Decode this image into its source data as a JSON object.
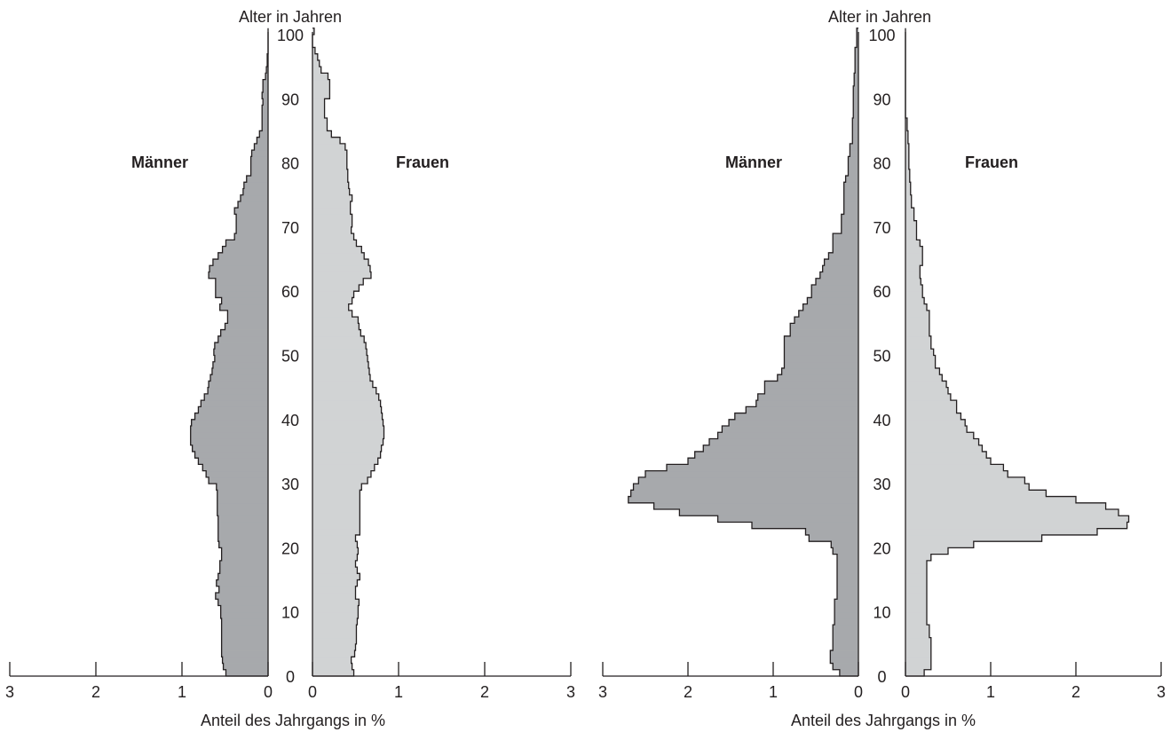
{
  "colors": {
    "men": "#a7a9ac",
    "women": "#d1d3d4",
    "line": "#231f20"
  },
  "chart_data": [
    {
      "type": "bar",
      "orientation": "horizontal-pyramid",
      "ylabel": "Alter in Jahren",
      "xlabel": "Anteil des Jahrgangs in %",
      "ylim": [
        0,
        100
      ],
      "xlim": [
        0,
        3
      ],
      "y_ticks": [
        "0",
        "10",
        "20",
        "30",
        "40",
        "50",
        "60",
        "70",
        "80",
        "90",
        "100"
      ],
      "x_ticks": [
        "0",
        "1",
        "2",
        "3"
      ],
      "male_label": "Männer",
      "female_label": "Frauen",
      "age": [
        0,
        1,
        2,
        3,
        4,
        5,
        6,
        7,
        8,
        9,
        10,
        11,
        12,
        13,
        14,
        15,
        16,
        17,
        18,
        19,
        20,
        21,
        22,
        23,
        24,
        25,
        26,
        27,
        28,
        29,
        30,
        31,
        32,
        33,
        34,
        35,
        36,
        37,
        38,
        39,
        40,
        41,
        42,
        43,
        44,
        45,
        46,
        47,
        48,
        49,
        50,
        51,
        52,
        53,
        54,
        55,
        56,
        57,
        58,
        59,
        60,
        61,
        62,
        63,
        64,
        65,
        66,
        67,
        68,
        69,
        70,
        71,
        72,
        73,
        74,
        75,
        76,
        77,
        78,
        79,
        80,
        81,
        82,
        83,
        84,
        85,
        86,
        87,
        88,
        89,
        90,
        91,
        92,
        93,
        94,
        95,
        96,
        97,
        98,
        99,
        100
      ],
      "series": [
        {
          "name": "Männer",
          "values": [
            0.49,
            0.52,
            0.53,
            0.54,
            0.54,
            0.54,
            0.54,
            0.54,
            0.54,
            0.55,
            0.55,
            0.58,
            0.61,
            0.57,
            0.6,
            0.58,
            0.56,
            0.56,
            0.54,
            0.54,
            0.57,
            0.58,
            0.58,
            0.58,
            0.58,
            0.59,
            0.59,
            0.59,
            0.59,
            0.6,
            0.69,
            0.72,
            0.76,
            0.81,
            0.85,
            0.88,
            0.9,
            0.9,
            0.9,
            0.89,
            0.85,
            0.81,
            0.78,
            0.74,
            0.7,
            0.69,
            0.67,
            0.65,
            0.64,
            0.62,
            0.63,
            0.62,
            0.58,
            0.55,
            0.5,
            0.47,
            0.47,
            0.56,
            0.54,
            0.61,
            0.61,
            0.61,
            0.69,
            0.68,
            0.64,
            0.58,
            0.53,
            0.49,
            0.39,
            0.37,
            0.37,
            0.37,
            0.39,
            0.35,
            0.32,
            0.29,
            0.28,
            0.25,
            0.2,
            0.2,
            0.2,
            0.19,
            0.16,
            0.13,
            0.1,
            0.07,
            0.07,
            0.07,
            0.07,
            0.06,
            0.07,
            0.06,
            0.06,
            0.03,
            0.02,
            0.01,
            0.01,
            0.0,
            0.0,
            0.0,
            0.0
          ]
        },
        {
          "name": "Frauen",
          "values": [
            0.48,
            0.46,
            0.45,
            0.49,
            0.5,
            0.51,
            0.51,
            0.51,
            0.52,
            0.53,
            0.53,
            0.54,
            0.5,
            0.5,
            0.52,
            0.55,
            0.52,
            0.5,
            0.52,
            0.53,
            0.52,
            0.5,
            0.55,
            0.55,
            0.55,
            0.55,
            0.55,
            0.55,
            0.55,
            0.57,
            0.64,
            0.68,
            0.72,
            0.76,
            0.79,
            0.8,
            0.82,
            0.83,
            0.83,
            0.82,
            0.81,
            0.8,
            0.79,
            0.77,
            0.74,
            0.7,
            0.67,
            0.66,
            0.65,
            0.64,
            0.63,
            0.62,
            0.6,
            0.56,
            0.54,
            0.53,
            0.46,
            0.42,
            0.46,
            0.48,
            0.54,
            0.59,
            0.68,
            0.67,
            0.65,
            0.6,
            0.57,
            0.51,
            0.48,
            0.45,
            0.46,
            0.46,
            0.44,
            0.44,
            0.46,
            0.43,
            0.42,
            0.41,
            0.41,
            0.4,
            0.4,
            0.4,
            0.38,
            0.32,
            0.22,
            0.17,
            0.17,
            0.14,
            0.14,
            0.14,
            0.2,
            0.2,
            0.2,
            0.18,
            0.1,
            0.08,
            0.06,
            0.03,
            0.0,
            0.0,
            0.02
          ]
        }
      ]
    },
    {
      "type": "bar",
      "orientation": "horizontal-pyramid",
      "ylabel": "Alter in Jahren",
      "xlabel": "Anteil des Jahrgangs in %",
      "ylim": [
        0,
        100
      ],
      "xlim": [
        0,
        3
      ],
      "y_ticks": [
        "0",
        "10",
        "20",
        "30",
        "40",
        "50",
        "60",
        "70",
        "80",
        "90",
        "100"
      ],
      "x_ticks": [
        "0",
        "1",
        "2",
        "3"
      ],
      "male_label": "Männer",
      "female_label": "Frauen",
      "age": [
        0,
        1,
        2,
        3,
        4,
        5,
        6,
        7,
        8,
        9,
        10,
        11,
        12,
        13,
        14,
        15,
        16,
        17,
        18,
        19,
        20,
        21,
        22,
        23,
        24,
        25,
        26,
        27,
        28,
        29,
        30,
        31,
        32,
        33,
        34,
        35,
        36,
        37,
        38,
        39,
        40,
        41,
        42,
        43,
        44,
        45,
        46,
        47,
        48,
        49,
        50,
        51,
        52,
        53,
        54,
        55,
        56,
        57,
        58,
        59,
        60,
        61,
        62,
        63,
        64,
        65,
        66,
        67,
        68,
        69,
        70,
        71,
        72,
        73,
        74,
        75,
        76,
        77,
        78,
        79,
        80,
        81,
        82,
        83,
        84,
        85,
        86,
        87,
        88,
        89,
        90,
        91,
        92,
        93,
        94,
        95,
        96,
        97,
        98,
        99,
        100
      ],
      "series": [
        {
          "name": "Männer",
          "values": [
            0.22,
            0.3,
            0.33,
            0.33,
            0.3,
            0.3,
            0.3,
            0.3,
            0.28,
            0.28,
            0.28,
            0.28,
            0.25,
            0.25,
            0.25,
            0.25,
            0.25,
            0.25,
            0.25,
            0.3,
            0.32,
            0.58,
            0.62,
            1.25,
            1.65,
            2.1,
            2.4,
            2.7,
            2.67,
            2.64,
            2.58,
            2.5,
            2.25,
            2.0,
            1.92,
            1.82,
            1.75,
            1.65,
            1.6,
            1.52,
            1.45,
            1.32,
            1.2,
            1.18,
            1.1,
            1.1,
            0.95,
            0.9,
            0.87,
            0.87,
            0.87,
            0.87,
            0.87,
            0.8,
            0.8,
            0.75,
            0.7,
            0.65,
            0.6,
            0.55,
            0.55,
            0.5,
            0.45,
            0.42,
            0.4,
            0.35,
            0.3,
            0.3,
            0.3,
            0.2,
            0.2,
            0.2,
            0.17,
            0.17,
            0.17,
            0.17,
            0.17,
            0.15,
            0.12,
            0.12,
            0.12,
            0.1,
            0.1,
            0.07,
            0.07,
            0.07,
            0.07,
            0.06,
            0.06,
            0.06,
            0.06,
            0.06,
            0.05,
            0.05,
            0.04,
            0.04,
            0.04,
            0.04,
            0.02,
            0.02,
            0.02
          ]
        },
        {
          "name": "Frauen",
          "values": [
            0.22,
            0.3,
            0.3,
            0.3,
            0.3,
            0.3,
            0.28,
            0.28,
            0.25,
            0.25,
            0.25,
            0.25,
            0.25,
            0.25,
            0.25,
            0.25,
            0.25,
            0.25,
            0.3,
            0.5,
            0.8,
            1.6,
            2.25,
            2.6,
            2.62,
            2.5,
            2.35,
            2.0,
            1.65,
            1.45,
            1.4,
            1.2,
            1.15,
            1.0,
            0.95,
            0.9,
            0.86,
            0.8,
            0.72,
            0.7,
            0.65,
            0.6,
            0.6,
            0.53,
            0.5,
            0.48,
            0.43,
            0.4,
            0.35,
            0.35,
            0.33,
            0.3,
            0.3,
            0.28,
            0.28,
            0.28,
            0.28,
            0.25,
            0.22,
            0.2,
            0.2,
            0.18,
            0.17,
            0.17,
            0.2,
            0.2,
            0.2,
            0.17,
            0.13,
            0.13,
            0.13,
            0.1,
            0.1,
            0.07,
            0.07,
            0.06,
            0.06,
            0.05,
            0.05,
            0.04,
            0.04,
            0.04,
            0.04,
            0.03,
            0.03,
            0.02,
            0.02,
            0.0,
            0.0,
            0.0,
            0.0,
            0.0,
            0.0,
            0.0,
            0.0,
            0.0,
            0.0,
            0.0,
            0.0,
            0.0,
            0.0
          ]
        }
      ]
    }
  ]
}
